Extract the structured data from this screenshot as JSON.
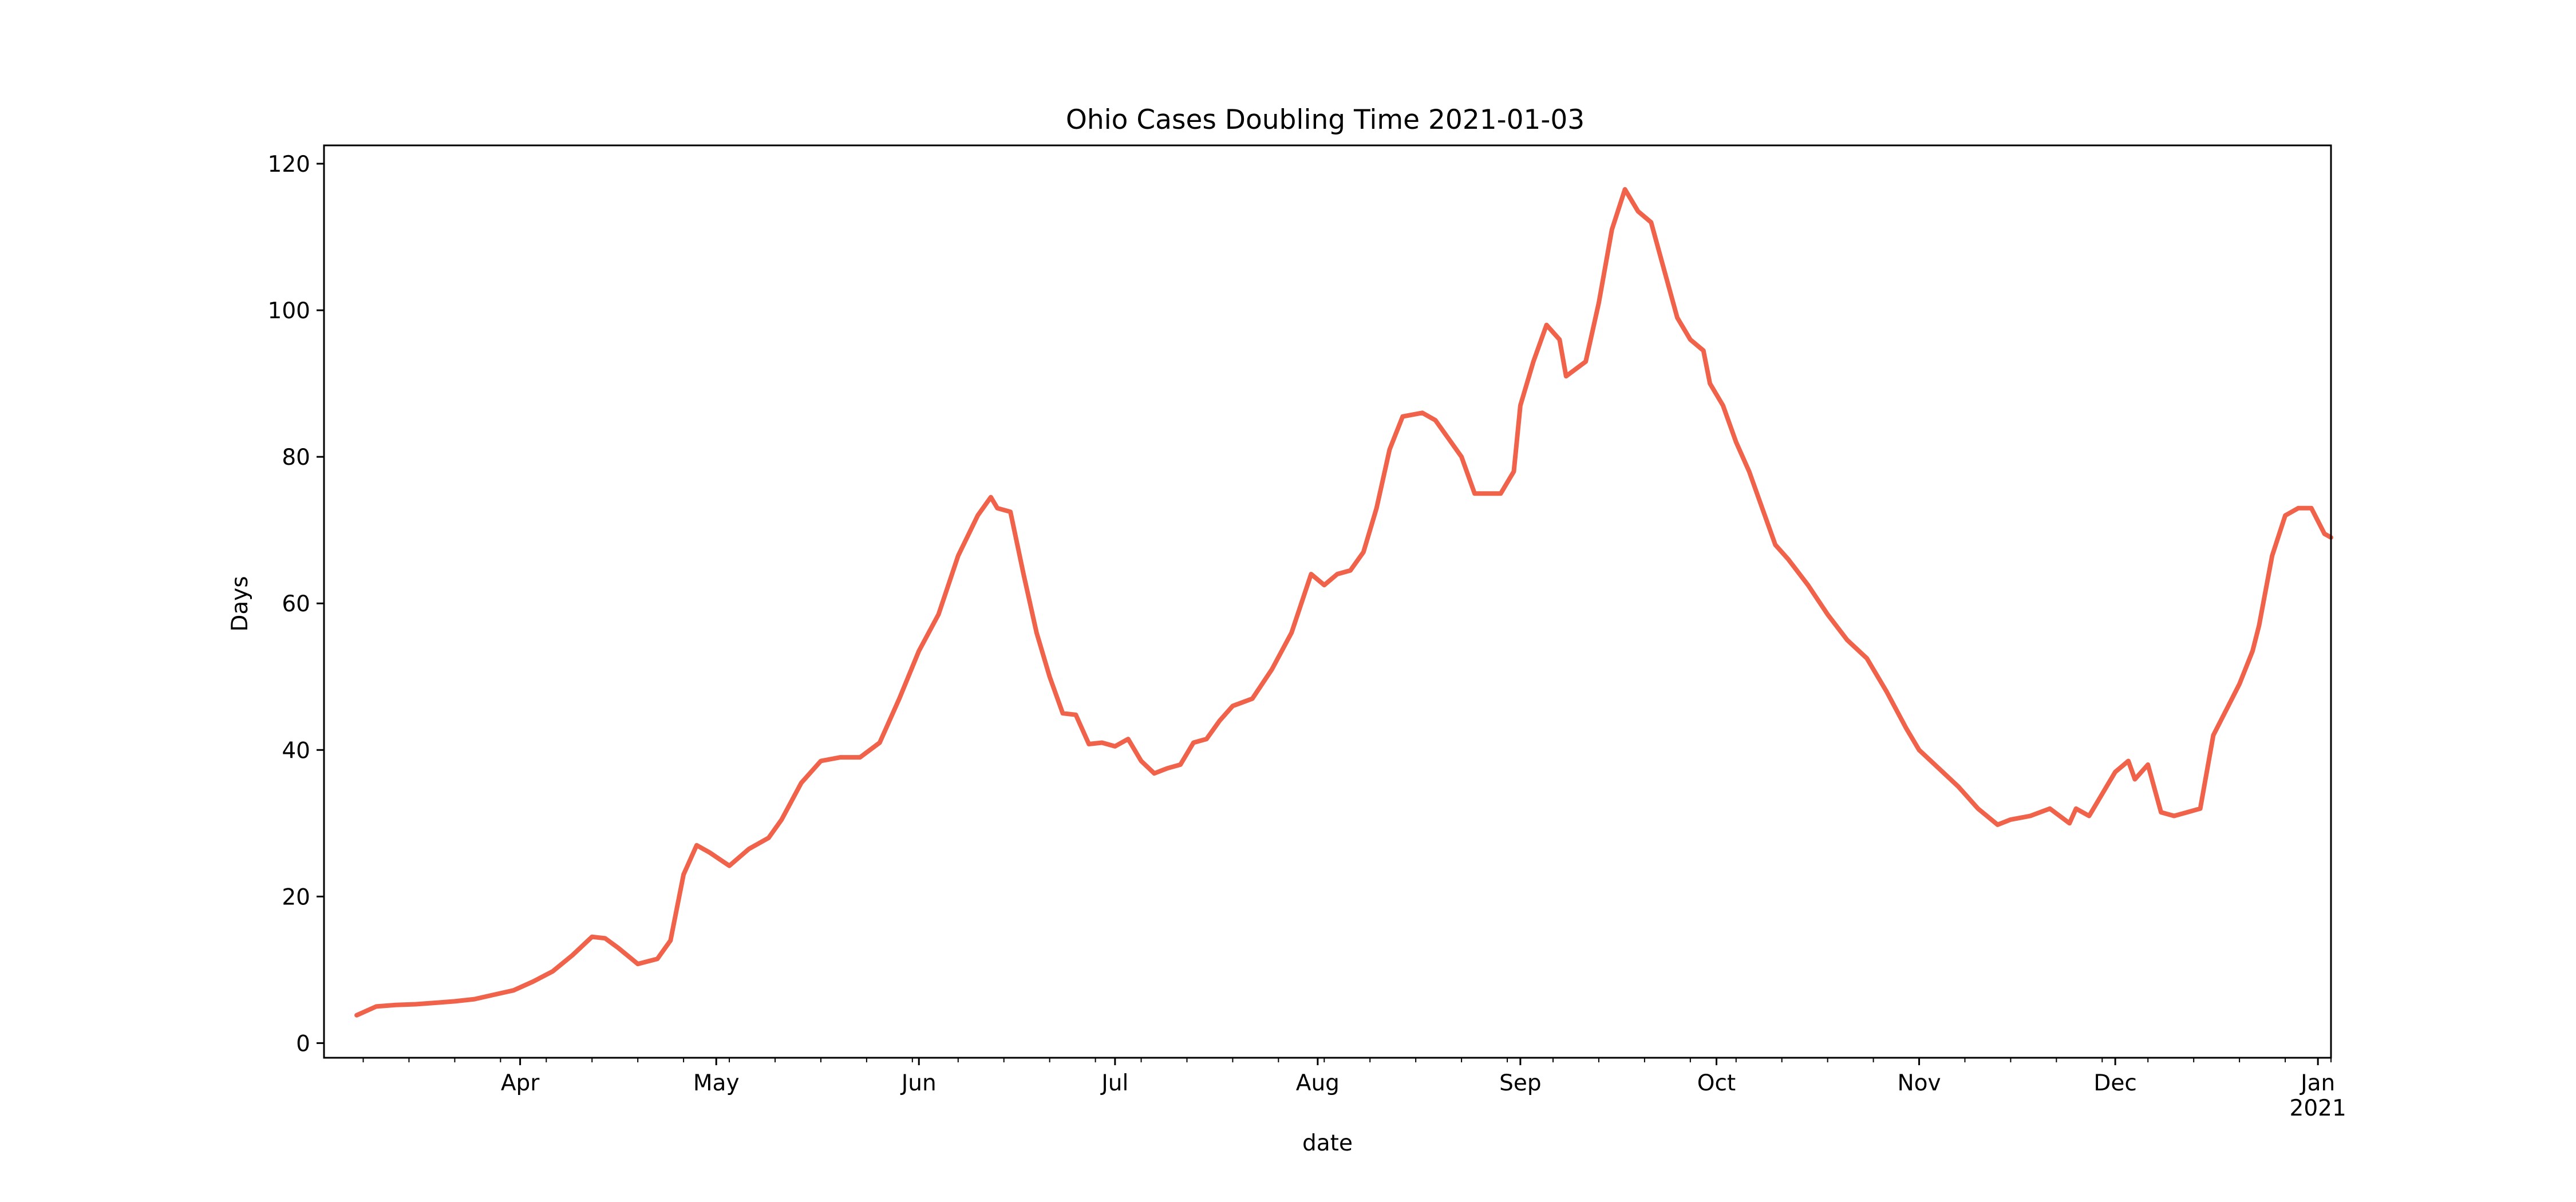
{
  "chart_data": {
    "type": "line",
    "title": "Ohio Cases Doubling Time 2021-01-03",
    "xlabel": "date",
    "ylabel": "Days",
    "xlim": [
      "2020-03-02",
      "2021-01-03"
    ],
    "ylim": [
      -2,
      122.5
    ],
    "grid": false,
    "legend": "none",
    "line_color": "#f0624a",
    "y_ticks": [
      0,
      20,
      40,
      60,
      80,
      100,
      120
    ],
    "x_ticks": [
      {
        "date": "2020-04-01",
        "label": "Apr",
        "sublabel": ""
      },
      {
        "date": "2020-05-01",
        "label": "May",
        "sublabel": ""
      },
      {
        "date": "2020-06-01",
        "label": "Jun",
        "sublabel": ""
      },
      {
        "date": "2020-07-01",
        "label": "Jul",
        "sublabel": ""
      },
      {
        "date": "2020-08-01",
        "label": "Aug",
        "sublabel": ""
      },
      {
        "date": "2020-09-01",
        "label": "Sep",
        "sublabel": ""
      },
      {
        "date": "2020-10-01",
        "label": "Oct",
        "sublabel": ""
      },
      {
        "date": "2020-11-01",
        "label": "Nov",
        "sublabel": ""
      },
      {
        "date": "2020-12-01",
        "label": "Dec",
        "sublabel": ""
      },
      {
        "date": "2021-01-01",
        "label": "Jan",
        "sublabel": "2021"
      }
    ],
    "series": [
      {
        "x": [
          "2020-03-07",
          "2020-03-10",
          "2020-03-13",
          "2020-03-16",
          "2020-03-19",
          "2020-03-22",
          "2020-03-25",
          "2020-03-28",
          "2020-03-31",
          "2020-04-03",
          "2020-04-06",
          "2020-04-09",
          "2020-04-12",
          "2020-04-14",
          "2020-04-16",
          "2020-04-19",
          "2020-04-22",
          "2020-04-24",
          "2020-04-26",
          "2020-04-28",
          "2020-04-30",
          "2020-05-03",
          "2020-05-06",
          "2020-05-09",
          "2020-05-11",
          "2020-05-14",
          "2020-05-17",
          "2020-05-20",
          "2020-05-23",
          "2020-05-26",
          "2020-05-29",
          "2020-06-01",
          "2020-06-04",
          "2020-06-07",
          "2020-06-10",
          "2020-06-12",
          "2020-06-13",
          "2020-06-15",
          "2020-06-17",
          "2020-06-19",
          "2020-06-21",
          "2020-06-23",
          "2020-06-25",
          "2020-06-27",
          "2020-06-29",
          "2020-07-01",
          "2020-07-03",
          "2020-07-05",
          "2020-07-07",
          "2020-07-09",
          "2020-07-11",
          "2020-07-13",
          "2020-07-15",
          "2020-07-17",
          "2020-07-19",
          "2020-07-22",
          "2020-07-25",
          "2020-07-28",
          "2020-07-31",
          "2020-08-02",
          "2020-08-04",
          "2020-08-06",
          "2020-08-08",
          "2020-08-10",
          "2020-08-12",
          "2020-08-14",
          "2020-08-17",
          "2020-08-19",
          "2020-08-21",
          "2020-08-23",
          "2020-08-25",
          "2020-08-27",
          "2020-08-29",
          "2020-08-31",
          "2020-09-01",
          "2020-09-03",
          "2020-09-05",
          "2020-09-07",
          "2020-09-08",
          "2020-09-11",
          "2020-09-13",
          "2020-09-15",
          "2020-09-17",
          "2020-09-19",
          "2020-09-21",
          "2020-09-23",
          "2020-09-25",
          "2020-09-27",
          "2020-09-29",
          "2020-09-30",
          "2020-10-02",
          "2020-10-04",
          "2020-10-06",
          "2020-10-08",
          "2020-10-10",
          "2020-10-12",
          "2020-10-15",
          "2020-10-18",
          "2020-10-21",
          "2020-10-24",
          "2020-10-27",
          "2020-10-30",
          "2020-11-01",
          "2020-11-04",
          "2020-11-07",
          "2020-11-10",
          "2020-11-13",
          "2020-11-15",
          "2020-11-18",
          "2020-11-21",
          "2020-11-24",
          "2020-11-25",
          "2020-11-27",
          "2020-11-28",
          "2020-12-01",
          "2020-12-03",
          "2020-12-04",
          "2020-12-06",
          "2020-12-08",
          "2020-12-10",
          "2020-12-12",
          "2020-12-14",
          "2020-12-16",
          "2020-12-18",
          "2020-12-20",
          "2020-12-22",
          "2020-12-23",
          "2020-12-25",
          "2020-12-27",
          "2020-12-29",
          "2020-12-31",
          "2021-01-02",
          "2021-01-03"
        ],
        "y": [
          3.8,
          5.0,
          5.2,
          5.3,
          5.5,
          5.7,
          6.0,
          6.6,
          7.2,
          8.4,
          9.8,
          12.0,
          14.5,
          14.3,
          13.0,
          10.8,
          11.5,
          14.0,
          23.0,
          27.0,
          26.0,
          24.2,
          26.5,
          28.0,
          30.5,
          35.5,
          38.5,
          39.0,
          39.0,
          41.0,
          47.0,
          53.5,
          58.5,
          66.5,
          72.0,
          74.5,
          73.0,
          72.5,
          64.0,
          56.0,
          50.0,
          45.0,
          44.8,
          40.8,
          41.0,
          40.5,
          41.5,
          38.5,
          36.8,
          37.5,
          38.0,
          41.0,
          41.5,
          44.0,
          46.0,
          47.0,
          51.0,
          56.0,
          64.0,
          62.5,
          64.0,
          64.5,
          67.0,
          73.0,
          81.0,
          85.5,
          86.0,
          85.0,
          82.5,
          80.0,
          75.0,
          75.0,
          75.0,
          78.0,
          87.0,
          93.0,
          98.0,
          96.0,
          91.0,
          93.0,
          101.0,
          111.0,
          116.5,
          113.5,
          112.0,
          105.5,
          99.0,
          96.0,
          94.5,
          90.0,
          87.0,
          82.0,
          78.0,
          73.0,
          68.0,
          66.0,
          62.5,
          58.5,
          55.0,
          52.5,
          48.0,
          43.0,
          40.0,
          37.5,
          35.0,
          32.0,
          29.8,
          30.5,
          31.0,
          32.0,
          30.0,
          32.0,
          31.0,
          32.5,
          37.0,
          38.5,
          36.0,
          38.0,
          31.5,
          31.0,
          31.5,
          32.0,
          42.0,
          45.5,
          49.0,
          53.5,
          57.0,
          66.5,
          72.0,
          73.0,
          73.0,
          69.5,
          69.0
        ]
      }
    ]
  }
}
